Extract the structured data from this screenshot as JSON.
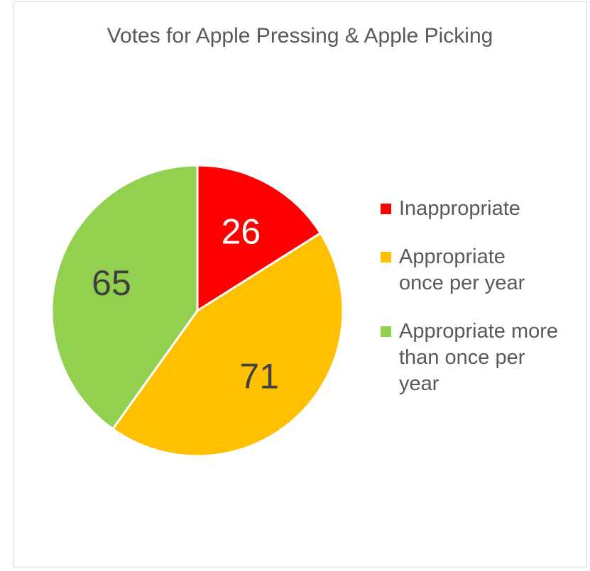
{
  "chart_data": {
    "type": "pie",
    "title": "Votes for Apple Pressing & Apple Picking",
    "legend_position": "right",
    "slices": [
      {
        "label": "Inappropriate",
        "value": 26,
        "color": "#FF0000"
      },
      {
        "label": "Appropriate once per year",
        "value": 71,
        "color": "#FFC000"
      },
      {
        "label": "Appropriate more than once per year",
        "value": 65,
        "color": "#92D050"
      }
    ]
  }
}
